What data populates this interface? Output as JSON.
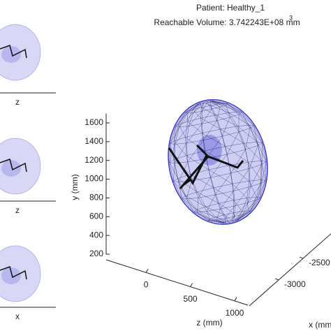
{
  "chart_data": {
    "type": "surface3d",
    "title": "Patient: Healthy_1",
    "subtitle": "Reachable Volume: 3.742243E+08 mm",
    "subtitle_superscript": "3",
    "ylabel": "y (mm)",
    "zlabel": "z (mm)",
    "xlabel": "x (mm)",
    "ylim": [
      200,
      1700
    ],
    "yticks": [
      200,
      400,
      600,
      800,
      1000,
      1200,
      1400,
      1600
    ],
    "zlim": [
      -450,
      1150
    ],
    "zticks": [
      0,
      500,
      1000
    ],
    "xlim": [
      -3600,
      -1900
    ],
    "xticks": [
      -3000,
      -2500
    ],
    "mesh_color": "#3a3ad0",
    "side_views": [
      {
        "axis_label": "z"
      },
      {
        "axis_label": "z"
      },
      {
        "axis_label": "x"
      }
    ]
  }
}
